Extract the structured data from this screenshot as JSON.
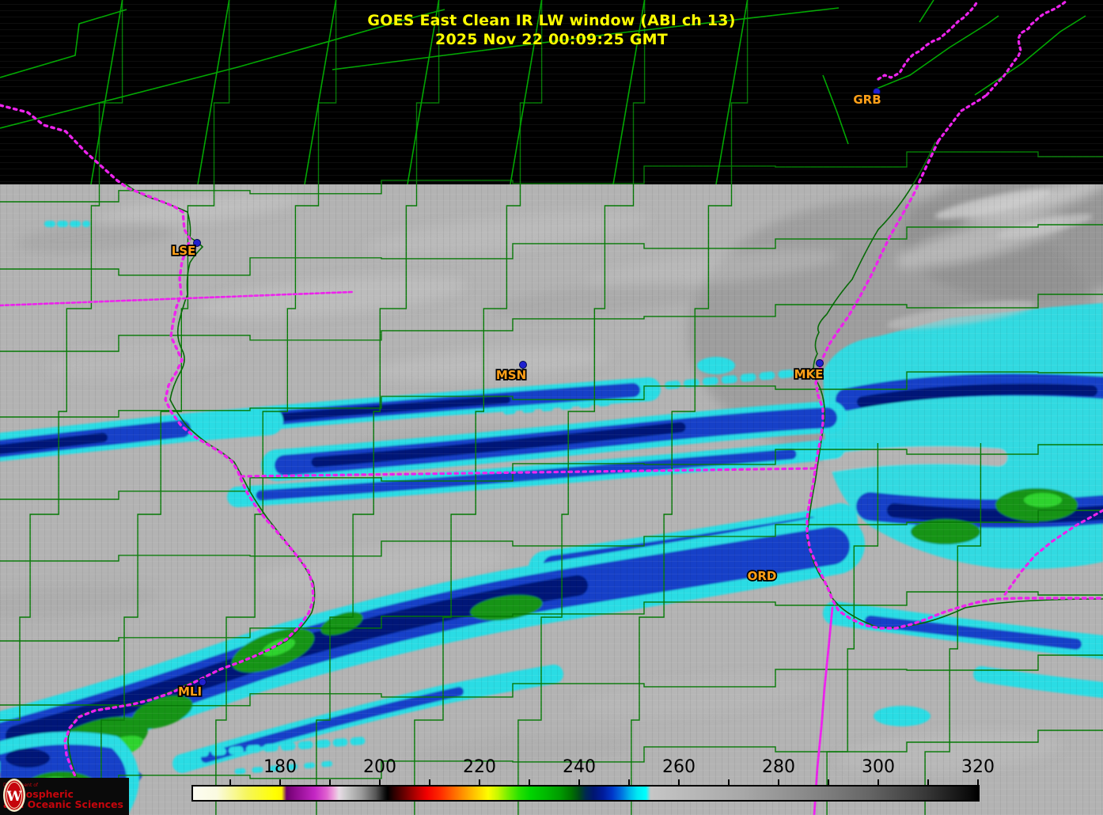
{
  "title": {
    "line1": "GOES East Clean IR LW window (ABI ch 13)",
    "line2": "2025 Nov 22  00:09:25 GMT"
  },
  "map": {
    "cities": [
      {
        "label": "GRB"
      },
      {
        "label": "LSE"
      },
      {
        "label": "MSN"
      },
      {
        "label": "MKE"
      },
      {
        "label": "ORD"
      },
      {
        "label": "MLI"
      }
    ]
  },
  "colorbar": {
    "tick_labels": [
      "180",
      "200",
      "220",
      "240",
      "260",
      "280",
      "300",
      "320"
    ]
  },
  "logo": {
    "dept": "Department of",
    "line1": "Atmospheric",
    "line2": "and Oceanic Sciences",
    "crest_letter": "W"
  },
  "colors": {
    "title_text": "#ffff00",
    "county_line": "#067a06",
    "county_line_on_black": "#00a800",
    "state_border": "#ee22ee",
    "city_label": "#ffa018",
    "city_dot": "#2020d0",
    "enhancement_cyan": "#2adce4",
    "enhancement_blue": "#1240c8",
    "enhancement_navy": "#001478",
    "enhancement_green": "#149414",
    "cloud_deck_gray": "#b3b3b3",
    "clear_sky_black": "#000000",
    "uw_red": "#c5050c"
  }
}
